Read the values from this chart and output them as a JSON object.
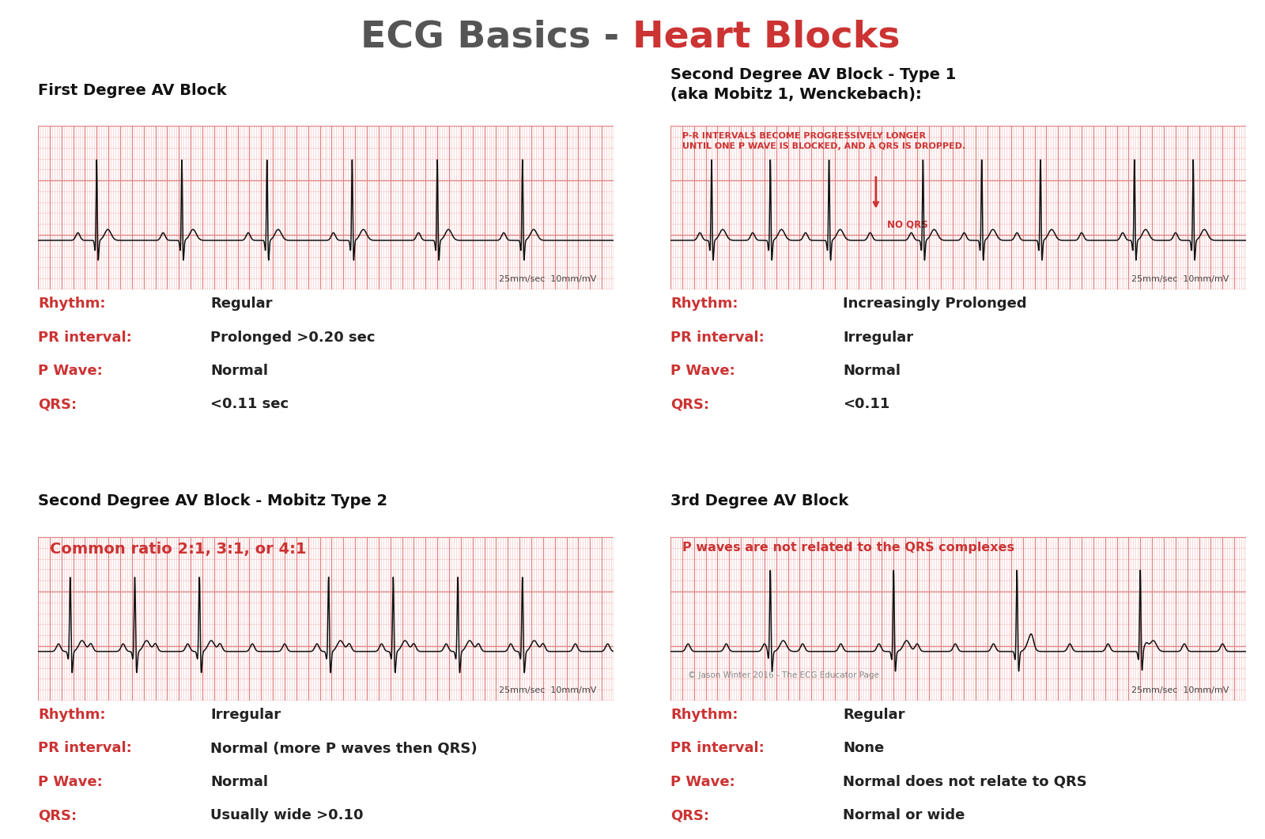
{
  "title_part1": "ECG Basics - ",
  "title_part2": "Heart Blocks",
  "title_color1": "#555555",
  "title_color2": "#cc3333",
  "title_fontsize": 34,
  "bg_color": "#ffffff",
  "ecg_bg": "#ffcccc",
  "ecg_grid_major": "#e08888",
  "ecg_grid_minor": "#f5bbbb",
  "ecg_line_color": "#111111",
  "panel_titles": [
    "First Degree AV Block",
    "Second Degree AV Block - Type 1\n(aka Mobitz 1, Wenckebach):",
    "Second Degree AV Block - Mobitz Type 2",
    "3rd Degree AV Block"
  ],
  "info_labels": [
    "Rhythm:",
    "PR interval:",
    "P Wave:",
    "QRS:"
  ],
  "info_label_color": "#cc3333",
  "info_value_color": "#222222",
  "panel1_values": [
    "Regular",
    "Prolonged >0.20 sec",
    "Normal",
    "<0.11 sec"
  ],
  "panel2_values": [
    "Increasingly Prolonged",
    "Irregular",
    "Normal",
    "<0.11"
  ],
  "panel3_values": [
    "Irregular",
    "Normal (more P waves then QRS)",
    "Normal",
    "Usually wide >0.10"
  ],
  "panel4_values": [
    "Regular",
    "None",
    "Normal does not relate to QRS",
    "Normal or wide"
  ],
  "scale_text": "25mm/sec  10mm/mV",
  "panel2_annotation": "P-R INTERVALS BECOME PROGRESSIVELY LONGER\nUNTIL ONE P WAVE IS BLOCKED, AND A QRS IS DROPPED.",
  "panel2_annotation_color": "#cc3333",
  "panel3_annotation": "Common ratio 2:1, 3:1, or 4:1",
  "panel3_annotation_color": "#cc3333",
  "panel4_annotation": "P waves are not related to the QRS complexes",
  "panel4_annotation_color": "#cc3333",
  "no_qrs_text": "NO QRS",
  "copyright": "© Jason Winter 2016 - The ECG Educator Page"
}
